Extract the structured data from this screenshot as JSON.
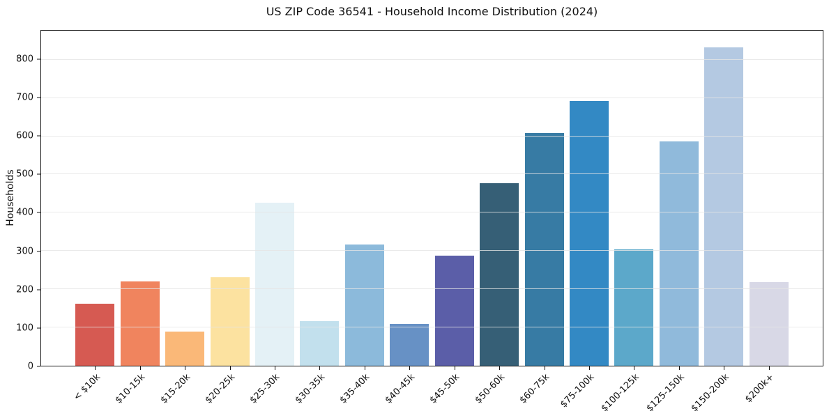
{
  "chart_data": {
    "type": "bar",
    "title": "US ZIP Code 36541 - Household Income Distribution (2024)",
    "xlabel": "",
    "ylabel": "Households",
    "categories": [
      "< $10k",
      "$10-15k",
      "$15-20k",
      "$20-25k",
      "$25-30k",
      "$30-35k",
      "$35-40k",
      "$40-45k",
      "$45-50k",
      "$50-60k",
      "$60-75k",
      "$75-100k",
      "$100-125k",
      "$125-150k",
      "$150-200k",
      "$200k+"
    ],
    "values": [
      162,
      220,
      90,
      231,
      427,
      117,
      317,
      109,
      288,
      478,
      609,
      692,
      304,
      587,
      832,
      219
    ],
    "bar_colors": [
      "#D65A52",
      "#F0845E",
      "#FAB878",
      "#FCE2A0",
      "#E4F1F6",
      "#C2E0ED",
      "#8CBADB",
      "#6791C5",
      "#5B5EA8",
      "#365F76",
      "#377BA4",
      "#3389C4",
      "#5CA8CA",
      "#90BADB",
      "#B4C9E2",
      "#D8D8E6"
    ],
    "ylim": [
      0,
      876
    ],
    "yticks": [
      0,
      100,
      200,
      300,
      400,
      500,
      600,
      700,
      800
    ],
    "grid": "horizontal-only",
    "legend": "none"
  },
  "style_colors": {
    "gridline": "#e5e5e5",
    "spine": "#151515",
    "text": "#111111",
    "background": "#ffffff"
  }
}
